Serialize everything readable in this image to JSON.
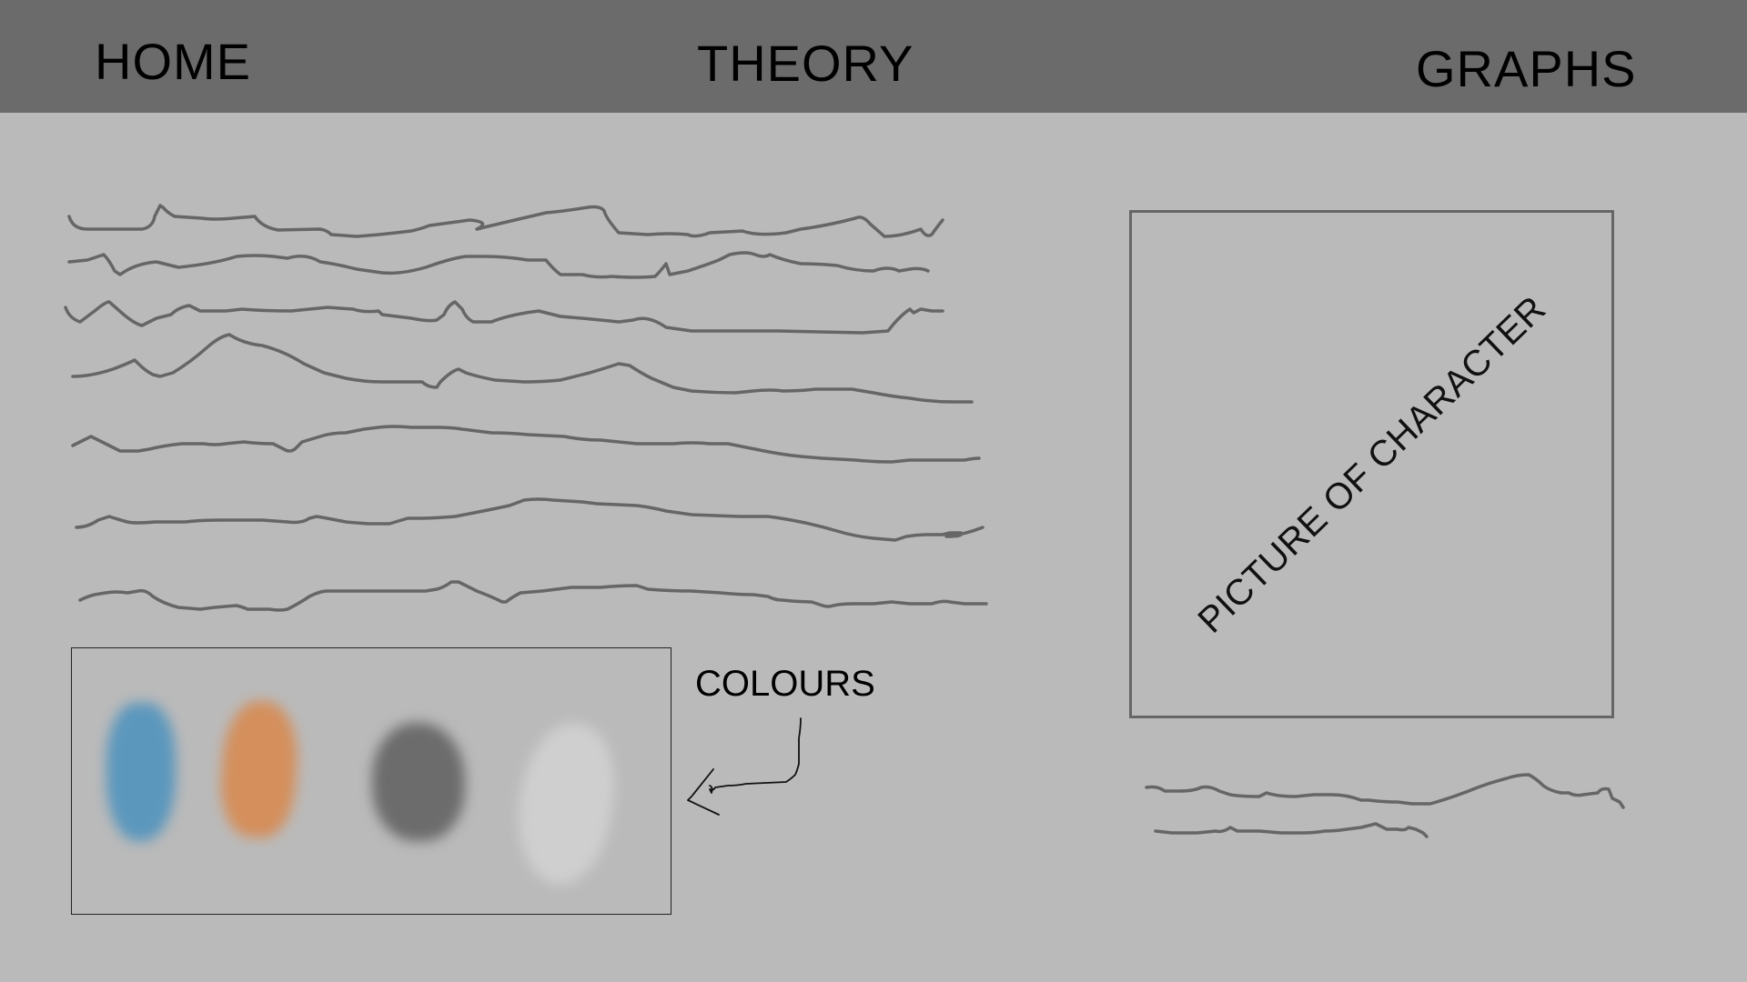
{
  "nav": {
    "home": "HOME",
    "theory": "THEORY",
    "graphs": "GRAPHS"
  },
  "colours": {
    "label": "COLOURS",
    "swatches": [
      "#5b97bd",
      "#d48f5c",
      "#6c6c6c",
      "#cfcfcf"
    ]
  },
  "picture": {
    "caption": "PICTURE OF CHARACTER"
  },
  "colors": {
    "navbar": "#6b6b6b",
    "background": "#bababa",
    "scribble": "#666666"
  }
}
